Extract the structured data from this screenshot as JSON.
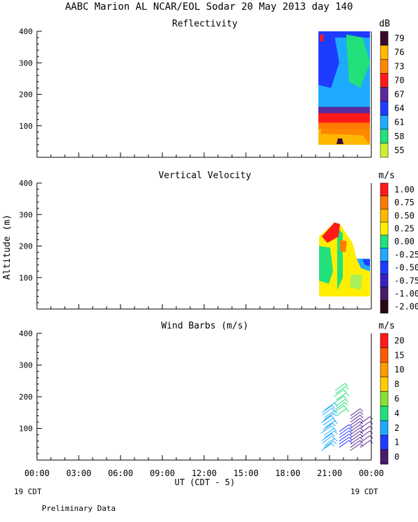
{
  "title": "AABC Marion AL NCAR/EOL Sodar  20 May 2013 day 140",
  "footer_note": "Preliminary Data",
  "x_axis": {
    "label": "UT  (CDT - 5)",
    "ticks": [
      "00:00",
      "03:00",
      "06:00",
      "09:00",
      "12:00",
      "15:00",
      "18:00",
      "21:00",
      "00:00"
    ],
    "left_date": "19 CDT",
    "right_date": "19 CDT"
  },
  "y_axis_label": "Altitude (m)",
  "colors": {
    "dark_purple": "#3a0a3a",
    "purple": "#5a2a9a",
    "blue": "#1e3cff",
    "cyan": "#1eaaff",
    "green": "#22e07a",
    "light_green": "#aaf05a",
    "yellow": "#ffee00",
    "gold": "#ffb800",
    "orange": "#ff7a00",
    "red": "#ff1a1a"
  },
  "chart_data": [
    {
      "type": "heatmap",
      "title": "Reflectivity",
      "unit": "dB",
      "x_range_hours": [
        0,
        24
      ],
      "y_ticks": [
        100,
        200,
        300,
        400
      ],
      "ylim": [
        0,
        400
      ],
      "colorbar_labels": [
        "79",
        "76",
        "73",
        "70",
        "67",
        "64",
        "61",
        "58",
        "55"
      ],
      "colorbar_colors": [
        "#3a0a2a",
        "#ffb800",
        "#ff8800",
        "#ff1a1a",
        "#5a2a9a",
        "#1e3cff",
        "#1eaaff",
        "#22e07a",
        "#ccf030"
      ],
      "data_extent": {
        "x_start": 20.0,
        "x_end": 24.0,
        "alt_min": 40,
        "alt_max": 400
      }
    },
    {
      "type": "heatmap",
      "title": "Vertical Velocity",
      "unit": "m/s",
      "x_range_hours": [
        0,
        24
      ],
      "y_ticks": [
        100,
        200,
        300,
        400
      ],
      "ylim": [
        0,
        400
      ],
      "colorbar_labels": [
        "1.00",
        "0.75",
        "0.50",
        "0.25",
        "0.00",
        "-0.25",
        "-0.50",
        "-0.75",
        "-1.00",
        "-2.00"
      ],
      "colorbar_colors": [
        "#ff1a1a",
        "#ff7a00",
        "#ffb800",
        "#ffee00",
        "#22e07a",
        "#1eaaff",
        "#1e3cff",
        "#3a20c0",
        "#4a1a6a",
        "#2a0a1a"
      ],
      "data_extent": {
        "x_start": 20.0,
        "x_end": 24.0,
        "alt_min": 40,
        "alt_max": 280
      }
    },
    {
      "type": "scatter",
      "title": "Wind Barbs (m/s)",
      "unit": "m/s",
      "x_range_hours": [
        0,
        24
      ],
      "y_ticks": [
        100,
        200,
        300,
        400
      ],
      "ylim": [
        0,
        400
      ],
      "colorbar_labels": [
        "20",
        "15",
        "10",
        "8",
        "6",
        "4",
        "2",
        "1",
        "0"
      ],
      "colorbar_colors": [
        "#ff1a1a",
        "#ff5a00",
        "#ff9a00",
        "#ffcc00",
        "#88e030",
        "#22e07a",
        "#1eaaff",
        "#1e3cff",
        "#4a1a6a"
      ],
      "data_extent": {
        "x_start": 20.0,
        "x_end": 24.0,
        "alt_min": 20,
        "alt_max": 220
      }
    }
  ]
}
